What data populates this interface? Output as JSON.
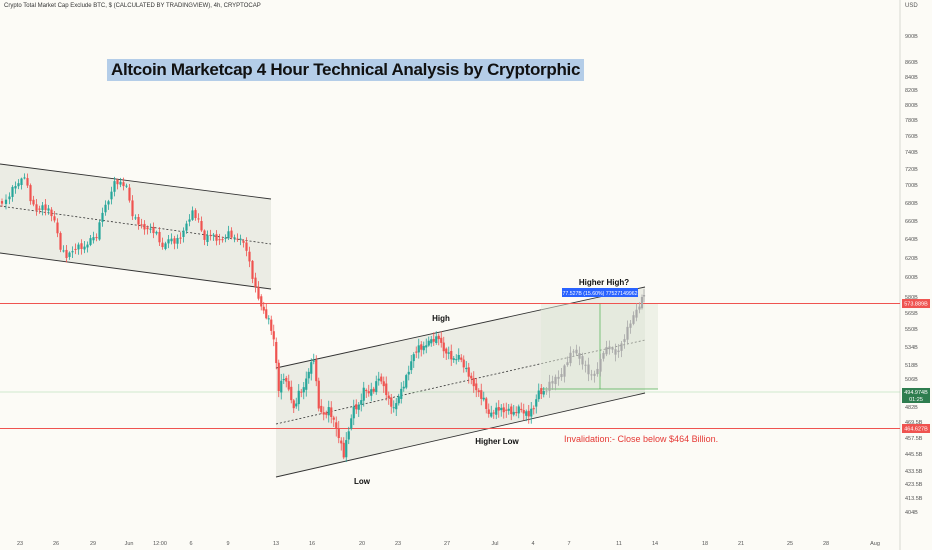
{
  "header": {
    "symbol_line": "Crypto Total Market Cap Exclude BTC, $ (CALCULATED BY TRADINGVIEW), 4h, CRYPTOCAP"
  },
  "title": "Altcoin Marketcap 4 Hour Technical Analysis by Cryptorphic",
  "currency_label": "USD",
  "colors": {
    "up": "#26a69a",
    "down": "#ef5350",
    "level_red": "#ef5350",
    "channel_fill": "#e8e9e0",
    "projection": "#a9a9a9",
    "title_bg": "#b4cde8",
    "current_tag": "#2e7d4f",
    "measure_tag": "#2962ff"
  },
  "annotations": {
    "high": "High",
    "low": "Low",
    "higher_high": "Higher High?",
    "higher_low": "Higher Low",
    "invalidation": "Invalidation:- Close below $464 Billion.",
    "measure": "77.527B (15.60%) 77527149962"
  },
  "price_tags": {
    "resistance": "573.889B",
    "current": "494.974B",
    "countdown": "01:25",
    "support": "464.627B"
  },
  "chart_data": {
    "type": "candlestick",
    "title": "Altcoin Marketcap 4 Hour Technical Analysis by Cryptorphic",
    "y_unit": "USD (billions)",
    "ylim": [
      400,
      920
    ],
    "y_ticks": [
      "900B",
      "860B",
      "840B",
      "820B",
      "800B",
      "780B",
      "760B",
      "740B",
      "720B",
      "700B",
      "680B",
      "660B",
      "640B",
      "620B",
      "600B",
      "580B",
      "565B",
      "550B",
      "534B",
      "518B",
      "506B",
      "482B",
      "469.5B",
      "457.5B",
      "445.5B",
      "433.5B",
      "423.5B",
      "413.5B",
      "404B"
    ],
    "x_ticks": [
      "23",
      "26",
      "29",
      "Jun",
      "12:00",
      "6",
      "9",
      "13",
      "16",
      "20",
      "23",
      "27",
      "Jul",
      "4",
      "7",
      "11",
      "14",
      "18",
      "21",
      "25",
      "28",
      "Aug"
    ],
    "levels": {
      "resistance": 573.889,
      "current": 494.974,
      "support": 464.627
    },
    "marked_points": {
      "high": 546,
      "low": 436,
      "higher_low": 470,
      "higher_high_target": 592
    },
    "price_path": [
      {
        "x": 0,
        "p": 680
      },
      {
        "x": 8,
        "p": 682
      },
      {
        "x": 14,
        "p": 696
      },
      {
        "x": 20,
        "p": 702
      },
      {
        "x": 26,
        "p": 711
      },
      {
        "x": 32,
        "p": 684
      },
      {
        "x": 38,
        "p": 672
      },
      {
        "x": 44,
        "p": 676
      },
      {
        "x": 50,
        "p": 672
      },
      {
        "x": 56,
        "p": 660
      },
      {
        "x": 62,
        "p": 630
      },
      {
        "x": 68,
        "p": 622
      },
      {
        "x": 74,
        "p": 628
      },
      {
        "x": 80,
        "p": 633
      },
      {
        "x": 86,
        "p": 630
      },
      {
        "x": 92,
        "p": 640
      },
      {
        "x": 98,
        "p": 642
      },
      {
        "x": 104,
        "p": 671
      },
      {
        "x": 110,
        "p": 683
      },
      {
        "x": 116,
        "p": 704
      },
      {
        "x": 122,
        "p": 702
      },
      {
        "x": 128,
        "p": 698
      },
      {
        "x": 134,
        "p": 666
      },
      {
        "x": 140,
        "p": 658
      },
      {
        "x": 146,
        "p": 652
      },
      {
        "x": 152,
        "p": 651
      },
      {
        "x": 158,
        "p": 646
      },
      {
        "x": 164,
        "p": 630
      },
      {
        "x": 170,
        "p": 640
      },
      {
        "x": 176,
        "p": 637
      },
      {
        "x": 182,
        "p": 642
      },
      {
        "x": 188,
        "p": 657
      },
      {
        "x": 194,
        "p": 670
      },
      {
        "x": 200,
        "p": 660
      },
      {
        "x": 206,
        "p": 639
      },
      {
        "x": 212,
        "p": 646
      },
      {
        "x": 218,
        "p": 640
      },
      {
        "x": 224,
        "p": 639
      },
      {
        "x": 230,
        "p": 647
      },
      {
        "x": 236,
        "p": 640
      },
      {
        "x": 242,
        "p": 640
      },
      {
        "x": 248,
        "p": 629
      },
      {
        "x": 254,
        "p": 600
      },
      {
        "x": 260,
        "p": 579
      },
      {
        "x": 265,
        "p": 566
      },
      {
        "x": 270,
        "p": 558
      },
      {
        "x": 275,
        "p": 540
      },
      {
        "x": 280,
        "p": 497
      },
      {
        "x": 285,
        "p": 508
      },
      {
        "x": 290,
        "p": 498
      },
      {
        "x": 295,
        "p": 480
      },
      {
        "x": 300,
        "p": 494
      },
      {
        "x": 305,
        "p": 498
      },
      {
        "x": 310,
        "p": 513
      },
      {
        "x": 315,
        "p": 524
      },
      {
        "x": 320,
        "p": 482
      },
      {
        "x": 325,
        "p": 475
      },
      {
        "x": 330,
        "p": 480
      },
      {
        "x": 335,
        "p": 470
      },
      {
        "x": 340,
        "p": 458
      },
      {
        "x": 345,
        "p": 445
      },
      {
        "x": 350,
        "p": 464
      },
      {
        "x": 355,
        "p": 482
      },
      {
        "x": 360,
        "p": 482
      },
      {
        "x": 365,
        "p": 497
      },
      {
        "x": 370,
        "p": 494
      },
      {
        "x": 375,
        "p": 497
      },
      {
        "x": 380,
        "p": 508
      },
      {
        "x": 385,
        "p": 500
      },
      {
        "x": 390,
        "p": 488
      },
      {
        "x": 395,
        "p": 480
      },
      {
        "x": 400,
        "p": 491
      },
      {
        "x": 405,
        "p": 501
      },
      {
        "x": 410,
        "p": 514
      },
      {
        "x": 415,
        "p": 528
      },
      {
        "x": 420,
        "p": 534
      },
      {
        "x": 425,
        "p": 533
      },
      {
        "x": 430,
        "p": 539
      },
      {
        "x": 435,
        "p": 540
      },
      {
        "x": 440,
        "p": 543
      },
      {
        "x": 445,
        "p": 531
      },
      {
        "x": 450,
        "p": 528
      },
      {
        "x": 455,
        "p": 522
      },
      {
        "x": 460,
        "p": 526
      },
      {
        "x": 465,
        "p": 517
      },
      {
        "x": 470,
        "p": 510
      },
      {
        "x": 475,
        "p": 501
      },
      {
        "x": 480,
        "p": 494
      },
      {
        "x": 485,
        "p": 488
      },
      {
        "x": 490,
        "p": 475
      },
      {
        "x": 495,
        "p": 478
      },
      {
        "x": 500,
        "p": 481
      },
      {
        "x": 505,
        "p": 479
      },
      {
        "x": 510,
        "p": 480
      },
      {
        "x": 515,
        "p": 476
      },
      {
        "x": 520,
        "p": 481
      },
      {
        "x": 525,
        "p": 477
      },
      {
        "x": 530,
        "p": 476
      },
      {
        "x": 535,
        "p": 482
      },
      {
        "x": 540,
        "p": 496
      },
      {
        "x": 545,
        "p": 494
      }
    ],
    "projection_path": [
      {
        "x": 545,
        "p": 494
      },
      {
        "x": 551,
        "p": 502
      },
      {
        "x": 557,
        "p": 506
      },
      {
        "x": 563,
        "p": 510
      },
      {
        "x": 569,
        "p": 522
      },
      {
        "x": 575,
        "p": 532
      },
      {
        "x": 581,
        "p": 524
      },
      {
        "x": 587,
        "p": 516
      },
      {
        "x": 593,
        "p": 508
      },
      {
        "x": 599,
        "p": 514
      },
      {
        "x": 605,
        "p": 530
      },
      {
        "x": 611,
        "p": 534
      },
      {
        "x": 617,
        "p": 528
      },
      {
        "x": 623,
        "p": 536
      },
      {
        "x": 629,
        "p": 550
      },
      {
        "x": 635,
        "p": 562
      },
      {
        "x": 641,
        "p": 572
      },
      {
        "x": 645,
        "p": 584
      }
    ],
    "grid": true,
    "legend": "none"
  }
}
